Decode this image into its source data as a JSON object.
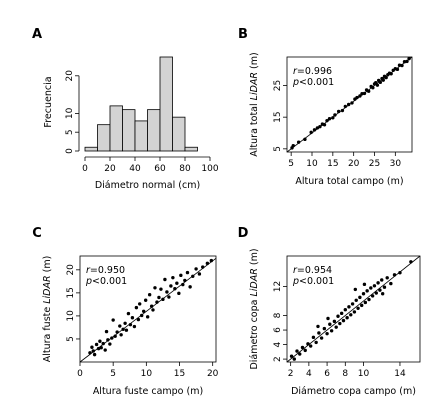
{
  "chart_data": [
    {
      "panel": "A",
      "type": "bar",
      "xlabel": "Diámetro normal (cm)",
      "ylabel": "Frecuencia",
      "bins": [
        [
          0,
          10
        ],
        [
          10,
          20
        ],
        [
          20,
          30
        ],
        [
          30,
          40
        ],
        [
          40,
          50
        ],
        [
          50,
          60
        ],
        [
          60,
          70
        ],
        [
          70,
          80
        ],
        [
          80,
          90
        ]
      ],
      "values": [
        1,
        7,
        12,
        11,
        8,
        11,
        25,
        9,
        1
      ],
      "xlim": [
        0,
        100
      ],
      "ylim": [
        0,
        25
      ],
      "xticks": [
        "0",
        "20",
        "40",
        "60",
        "80",
        "100"
      ],
      "yticks": [
        "0",
        "5",
        "10",
        "20"
      ],
      "bar_color": "#d3d3d3"
    },
    {
      "panel": "B",
      "type": "scatter",
      "xlabel": "Altura total campo (m)",
      "ylabel": "Altura total LiDAR (m)",
      "ylabel_italic": "LiDAR",
      "stat_r_prefix": "r",
      "stat_r_value": "=0.996",
      "stat_p_prefix": "p",
      "stat_p_value": "<0.001",
      "xlim": [
        4,
        34
      ],
      "ylim": [
        4,
        34
      ],
      "xticks": [
        "5",
        "10",
        "15",
        "20",
        "25",
        "30"
      ],
      "yticks": [
        "5",
        "15",
        "25"
      ],
      "line": [
        [
          4,
          4
        ],
        [
          34,
          34
        ]
      ],
      "points": [
        [
          5.2,
          5.3
        ],
        [
          5.5,
          6.0
        ],
        [
          6.8,
          7.1
        ],
        [
          8.3,
          8.0
        ],
        [
          9.8,
          10.2
        ],
        [
          10.6,
          11.0
        ],
        [
          11.3,
          11.6
        ],
        [
          11.9,
          12.0
        ],
        [
          12.5,
          12.8
        ],
        [
          13.0,
          12.6
        ],
        [
          13.6,
          13.9
        ],
        [
          14.2,
          14.5
        ],
        [
          15.0,
          14.8
        ],
        [
          15.5,
          15.7
        ],
        [
          16.4,
          16.8
        ],
        [
          17.3,
          17.1
        ],
        [
          18.0,
          18.4
        ],
        [
          18.8,
          19.0
        ],
        [
          19.6,
          19.5
        ],
        [
          20.3,
          20.7
        ],
        [
          20.8,
          21.2
        ],
        [
          21.5,
          21.7
        ],
        [
          22.0,
          22.4
        ],
        [
          22.6,
          22.5
        ],
        [
          23.1,
          23.6
        ],
        [
          23.6,
          23.2
        ],
        [
          24.2,
          24.7
        ],
        [
          24.6,
          24.3
        ],
        [
          25.0,
          25.5
        ],
        [
          25.3,
          25.9
        ],
        [
          25.7,
          25.1
        ],
        [
          26.0,
          26.6
        ],
        [
          26.4,
          26.0
        ],
        [
          26.8,
          27.2
        ],
        [
          27.1,
          26.7
        ],
        [
          27.4,
          27.9
        ],
        [
          27.8,
          27.5
        ],
        [
          28.2,
          28.4
        ],
        [
          28.6,
          28.9
        ],
        [
          29.0,
          28.7
        ],
        [
          29.5,
          29.8
        ],
        [
          30.0,
          30.3
        ],
        [
          30.5,
          30.1
        ],
        [
          31.0,
          31.4
        ],
        [
          31.6,
          31.3
        ],
        [
          32.2,
          32.5
        ],
        [
          32.8,
          32.6
        ],
        [
          33.3,
          33.5
        ]
      ]
    },
    {
      "panel": "C",
      "type": "scatter",
      "xlabel": "Altura fuste campo (m)",
      "ylabel": "Altura fuste LiDAR (m)",
      "ylabel_italic": "LiDAR",
      "stat_r_prefix": "r",
      "stat_r_value": "=0.950",
      "stat_p_prefix": "p",
      "stat_p_value": "<0.001",
      "xlim": [
        0,
        20.5
      ],
      "ylim": [
        0,
        23
      ],
      "xticks": [
        "0",
        "5",
        "10",
        "15",
        "20"
      ],
      "yticks": [
        "5",
        "10",
        "15",
        "20"
      ],
      "line": [
        [
          0,
          0
        ],
        [
          20.5,
          22.5
        ]
      ],
      "points": [
        [
          1.5,
          2.0
        ],
        [
          1.8,
          3.2
        ],
        [
          2.0,
          2.4
        ],
        [
          2.2,
          1.6
        ],
        [
          2.5,
          3.8
        ],
        [
          2.8,
          2.9
        ],
        [
          3.0,
          4.5
        ],
        [
          3.2,
          3.1
        ],
        [
          3.5,
          4.0
        ],
        [
          3.8,
          2.6
        ],
        [
          4.0,
          6.6
        ],
        [
          4.2,
          4.8
        ],
        [
          4.5,
          3.9
        ],
        [
          4.8,
          5.2
        ],
        [
          5.0,
          9.1
        ],
        [
          5.3,
          5.6
        ],
        [
          5.6,
          6.5
        ],
        [
          6.0,
          7.8
        ],
        [
          6.2,
          5.9
        ],
        [
          6.5,
          7.1
        ],
        [
          6.8,
          8.4
        ],
        [
          7.0,
          6.9
        ],
        [
          7.3,
          10.5
        ],
        [
          7.6,
          8.1
        ],
        [
          7.9,
          9.6
        ],
        [
          8.2,
          7.7
        ],
        [
          8.5,
          11.8
        ],
        [
          8.8,
          9.2
        ],
        [
          9.0,
          12.6
        ],
        [
          9.3,
          10.1
        ],
        [
          9.6,
          11.0
        ],
        [
          9.9,
          13.4
        ],
        [
          10.2,
          9.8
        ],
        [
          10.5,
          14.6
        ],
        [
          10.8,
          12.1
        ],
        [
          11.0,
          11.3
        ],
        [
          11.3,
          16.1
        ],
        [
          11.6,
          13.0
        ],
        [
          11.9,
          14.0
        ],
        [
          12.2,
          15.8
        ],
        [
          12.5,
          13.6
        ],
        [
          12.8,
          17.9
        ],
        [
          13.1,
          15.2
        ],
        [
          13.4,
          14.1
        ],
        [
          13.7,
          16.5
        ],
        [
          14.0,
          18.3
        ],
        [
          14.3,
          15.9
        ],
        [
          14.6,
          17.1
        ],
        [
          14.9,
          14.9
        ],
        [
          15.2,
          18.8
        ],
        [
          15.5,
          16.8
        ],
        [
          15.8,
          17.7
        ],
        [
          16.2,
          19.4
        ],
        [
          16.6,
          16.3
        ],
        [
          17.0,
          18.6
        ],
        [
          17.5,
          20.2
        ],
        [
          18.0,
          19.1
        ],
        [
          18.5,
          20.6
        ],
        [
          19.2,
          21.4
        ],
        [
          19.8,
          22.0
        ]
      ]
    },
    {
      "panel": "D",
      "type": "scatter",
      "xlabel": "Diámetro copa campo (m)",
      "ylabel": "Diámetro copa LiDAR (m)",
      "ylabel_italic": "LiDAR",
      "stat_r_prefix": "r",
      "stat_r_value": "=0.954",
      "stat_p_prefix": "p",
      "stat_p_value": "<0.001",
      "xlim": [
        1.6,
        16.2
      ],
      "ylim": [
        1.6,
        16.2
      ],
      "xticks": [
        "2",
        "4",
        "6",
        "8",
        "10",
        "14"
      ],
      "yticks": [
        "2",
        "4",
        "6",
        "8",
        "12"
      ],
      "line": [
        [
          1.6,
          1.6
        ],
        [
          16.2,
          16.2
        ]
      ],
      "points": [
        [
          2.1,
          2.4
        ],
        [
          2.4,
          2.0
        ],
        [
          2.7,
          3.1
        ],
        [
          3.0,
          2.7
        ],
        [
          3.3,
          3.6
        ],
        [
          3.6,
          3.2
        ],
        [
          3.9,
          4.1
        ],
        [
          4.2,
          3.8
        ],
        [
          4.5,
          5.0
        ],
        [
          4.8,
          4.3
        ],
        [
          5.1,
          5.6
        ],
        [
          5.4,
          4.9
        ],
        [
          5.7,
          6.2
        ],
        [
          6.0,
          5.5
        ],
        [
          6.3,
          6.8
        ],
        [
          6.5,
          5.9
        ],
        [
          6.8,
          7.2
        ],
        [
          7.0,
          6.4
        ],
        [
          7.2,
          7.9
        ],
        [
          7.4,
          6.9
        ],
        [
          7.6,
          8.3
        ],
        [
          7.8,
          7.3
        ],
        [
          8.0,
          8.8
        ],
        [
          8.2,
          7.7
        ],
        [
          8.4,
          9.2
        ],
        [
          8.6,
          8.1
        ],
        [
          8.8,
          9.6
        ],
        [
          9.0,
          8.5
        ],
        [
          9.2,
          10.1
        ],
        [
          9.4,
          9.0
        ],
        [
          9.6,
          10.5
        ],
        [
          9.8,
          9.4
        ],
        [
          10.0,
          11.0
        ],
        [
          10.2,
          9.8
        ],
        [
          10.4,
          11.4
        ],
        [
          10.6,
          10.2
        ],
        [
          10.8,
          11.8
        ],
        [
          11.0,
          10.7
        ],
        [
          11.2,
          12.1
        ],
        [
          11.4,
          11.1
        ],
        [
          11.6,
          12.5
        ],
        [
          11.8,
          11.5
        ],
        [
          12.0,
          12.9
        ],
        [
          12.3,
          11.9
        ],
        [
          12.6,
          13.2
        ],
        [
          13.0,
          12.4
        ],
        [
          13.4,
          13.6
        ],
        [
          14.0,
          13.9
        ],
        [
          15.2,
          15.4
        ],
        [
          5.0,
          6.5
        ],
        [
          6.1,
          7.6
        ],
        [
          9.1,
          11.6
        ],
        [
          10.1,
          12.3
        ],
        [
          12.1,
          11.0
        ]
      ]
    }
  ]
}
